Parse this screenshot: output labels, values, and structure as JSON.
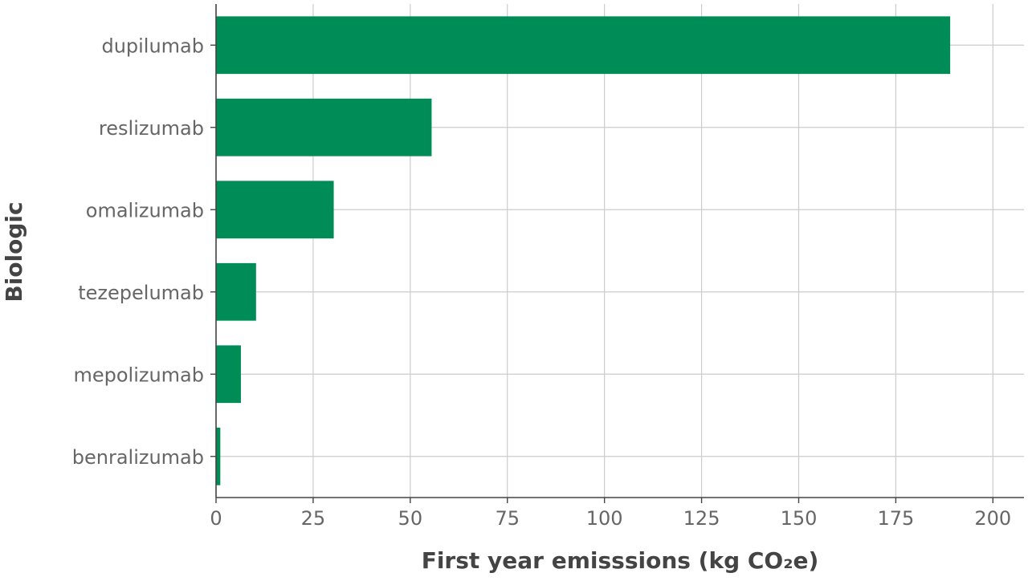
{
  "chart_data": {
    "type": "bar",
    "orientation": "horizontal",
    "title": "",
    "xlabel": "First year emisssions (kg CO₂e)",
    "ylabel": "Biologic",
    "categories": [
      "dupilumab",
      "reslizumab",
      "omalizumab",
      "tezepelumab",
      "mepolizumab",
      "benralizumab"
    ],
    "values": [
      189,
      55.5,
      30.3,
      10.3,
      6.4,
      1.1
    ],
    "xlim": [
      0,
      208
    ],
    "xticks": [
      "0",
      "25",
      "50",
      "75",
      "100",
      "125",
      "150",
      "175",
      "200"
    ],
    "grid": true,
    "legend": "none",
    "colors": {
      "bar": "#008c57",
      "axis": "#444444",
      "grid": "#cccccc",
      "tick_text": "#666666",
      "title_text": "#444444"
    }
  }
}
